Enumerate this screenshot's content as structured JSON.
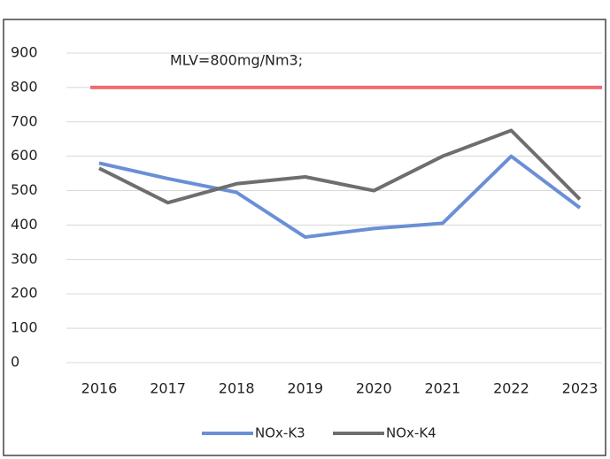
{
  "chart_data": {
    "type": "line",
    "categories": [
      "2016",
      "2017",
      "2018",
      "2019",
      "2020",
      "2021",
      "2022",
      "2023"
    ],
    "series": [
      {
        "name": "NOx-K3",
        "color": "#6b8fd6",
        "values": [
          580,
          535,
          495,
          365,
          390,
          405,
          600,
          450
        ]
      },
      {
        "name": "NOx-K4",
        "color": "#6e6e6e",
        "values": [
          565,
          465,
          520,
          540,
          500,
          600,
          675,
          475
        ]
      }
    ],
    "reference": {
      "value": 800,
      "label": "MLV=800mg/Nm3;",
      "color": "#ef6b70"
    },
    "ylim": [
      0,
      900
    ],
    "yticks": [
      0,
      100,
      200,
      300,
      400,
      500,
      600,
      700,
      800,
      900
    ],
    "grid": true,
    "legend": "bottom"
  }
}
